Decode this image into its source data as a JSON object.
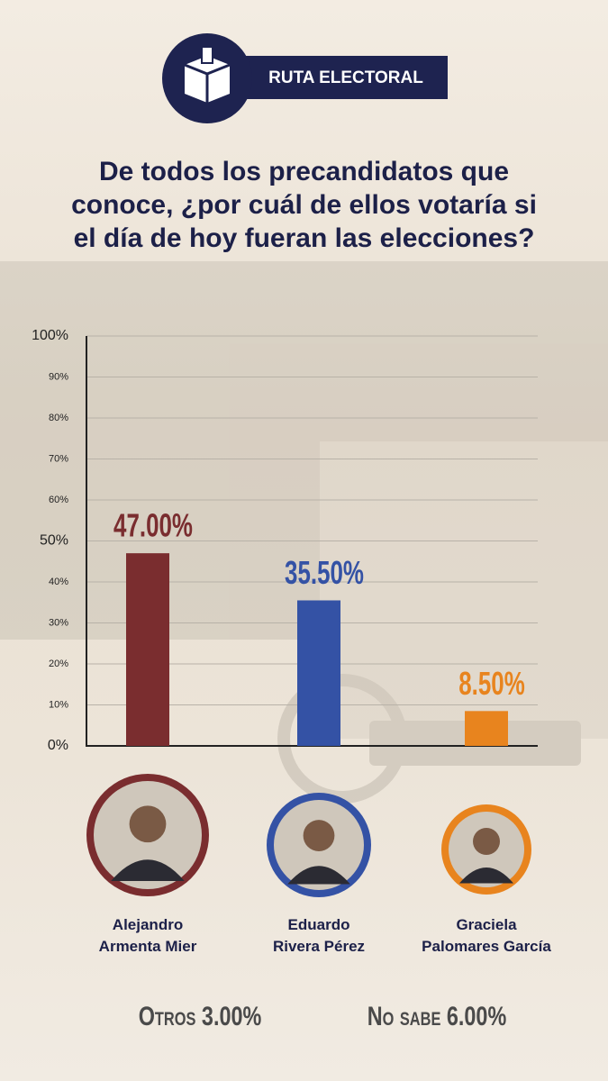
{
  "brand": "RUTA ELECTORAL",
  "chart_data": {
    "type": "bar",
    "title": "De todos los precandidatos que\nconoce, ¿por cuál de ellos votaría si\nel día de hoy fueran las elecciones?",
    "categories": [
      "Alejandro\nArmenta Mier",
      "Eduardo\nRivera Pérez",
      "Graciela\nPalomares García"
    ],
    "values": [
      47,
      35.5,
      8.5
    ],
    "value_labels": [
      "47.00%",
      "35.50%",
      "8.50%"
    ],
    "colors": [
      "#7a2d2f",
      "#3452a5",
      "#e8841e"
    ],
    "ylim": [
      0,
      100
    ],
    "yticks": [
      {
        "value": 0,
        "label": "0%"
      },
      {
        "value": 10,
        "label": "10%"
      },
      {
        "value": 20,
        "label": "20%"
      },
      {
        "value": 30,
        "label": "30%"
      },
      {
        "value": 40,
        "label": "40%"
      },
      {
        "value": 50,
        "label": "50%"
      },
      {
        "value": 60,
        "label": "60%"
      },
      {
        "value": 70,
        "label": "70%"
      },
      {
        "value": 80,
        "label": "80%"
      },
      {
        "value": 90,
        "label": "90%"
      },
      {
        "value": 100,
        "label": "100%"
      }
    ],
    "grid": true,
    "others": [
      {
        "label": "Otros",
        "value": 3,
        "value_label": "3.00%"
      },
      {
        "label": "No sabe",
        "value": 6,
        "value_label": "6.00%"
      }
    ]
  }
}
